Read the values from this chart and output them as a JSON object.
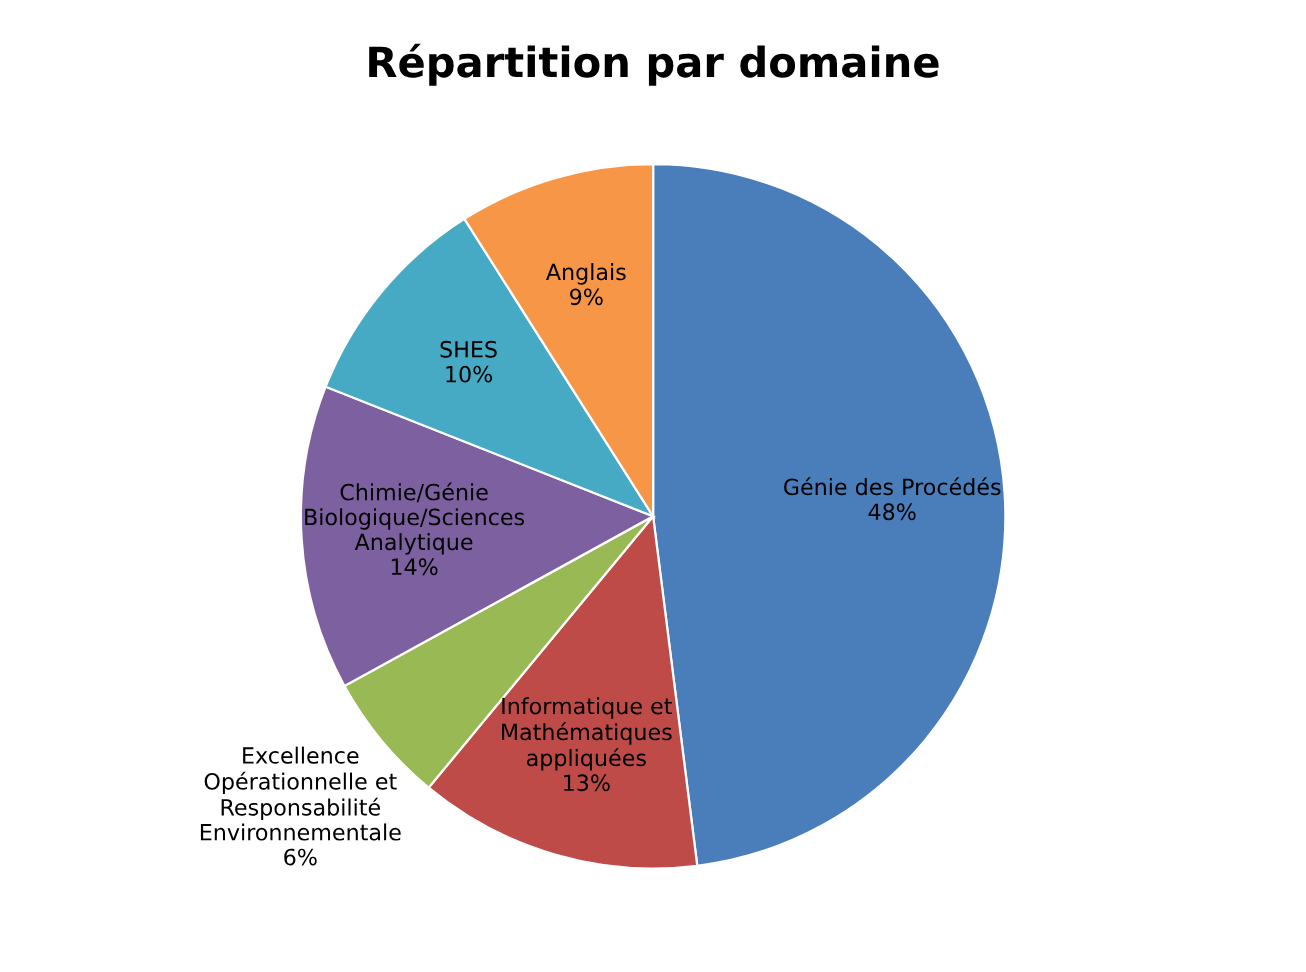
{
  "chart_data": {
    "type": "pie",
    "title": "Répartition par domaine",
    "categories": [
      "Génie des Procédés",
      "Informatique et\nMathématiques\nappliquées",
      "Excellence\nOpérationnelle et\nResponsabilité\nEnvironnementale",
      "Chimie/Génie\nBiologique/Sciences\nAnalytique",
      "SHES",
      "Anglais"
    ],
    "values": [
      48,
      13,
      6,
      14,
      10,
      9
    ],
    "value_labels": [
      "48%",
      "13%",
      "6%",
      "14%",
      "10%",
      "9%"
    ],
    "colors": [
      "#4a7ebb",
      "#be4b48",
      "#98b954",
      "#7d60a0",
      "#46aac5",
      "#f79646"
    ],
    "legend": false
  }
}
